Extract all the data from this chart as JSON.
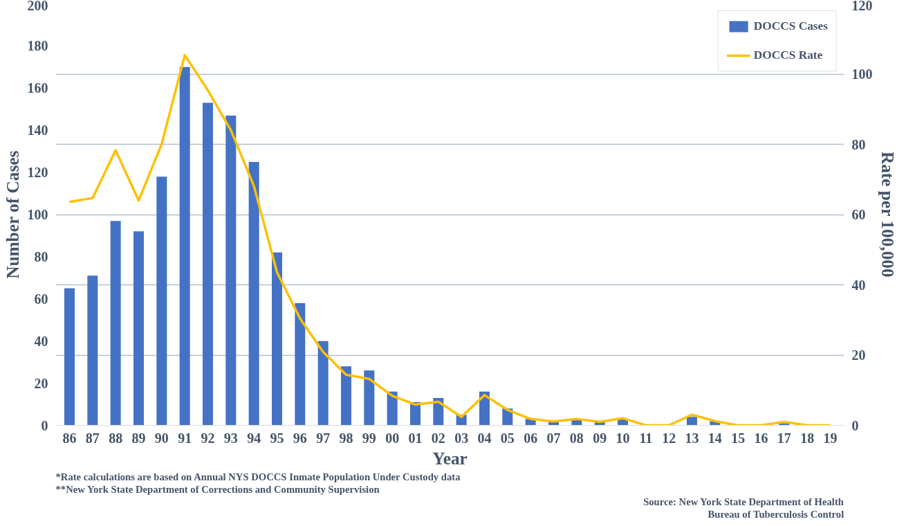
{
  "chart_data": {
    "type": "bar",
    "categories": [
      "86",
      "87",
      "88",
      "89",
      "90",
      "91",
      "92",
      "93",
      "94",
      "95",
      "96",
      "97",
      "98",
      "99",
      "00",
      "01",
      "02",
      "03",
      "04",
      "05",
      "06",
      "07",
      "08",
      "09",
      "10",
      "11",
      "12",
      "13",
      "14",
      "15",
      "16",
      "17",
      "18",
      "19"
    ],
    "xlabel": "Year",
    "ylabel": "Number of Cases",
    "y2label": "Rate per 100,000",
    "series": [
      {
        "name": "DOCCS Cases",
        "color": "#4472c4",
        "values": [
          65,
          71,
          97,
          92,
          118,
          170,
          153,
          147,
          125,
          82,
          58,
          40,
          28,
          26,
          16,
          11,
          13,
          5,
          16,
          8,
          3,
          2,
          3,
          2,
          3,
          0,
          0,
          4,
          2,
          0,
          0,
          1,
          0,
          0
        ]
      },
      {
        "name": "DOCCS Rate",
        "type": "line",
        "axis": "y2",
        "color": "#ffc000",
        "values": [
          63.6,
          64.7,
          78.3,
          64.0,
          80.1,
          105.4,
          95.4,
          84.0,
          68.1,
          43.6,
          30.4,
          20.9,
          14.4,
          13.2,
          8.4,
          5.9,
          6.7,
          2.4,
          8.6,
          4.4,
          1.8,
          1.1,
          1.8,
          1.0,
          2.0,
          0,
          0,
          3.0,
          1.2,
          0,
          0,
          1.0,
          0,
          0
        ]
      }
    ],
    "ylim": [
      0,
      200
    ],
    "yticks": [
      0,
      20,
      40,
      60,
      80,
      100,
      120,
      140,
      160,
      180,
      200
    ],
    "y2lim": [
      0,
      120
    ],
    "y2ticks": [
      0,
      20,
      40,
      60,
      80,
      100,
      120
    ],
    "grid": "y2",
    "legend": "top right",
    "annotations": [
      "*Rate calculations are based on Annual NYS DOCCS Inmate Population Under Custody data",
      "**New York State Department of Corrections and Community Supervision",
      "Source: New York State Department of Health",
      "Bureau of Tuberculosis Control"
    ]
  }
}
